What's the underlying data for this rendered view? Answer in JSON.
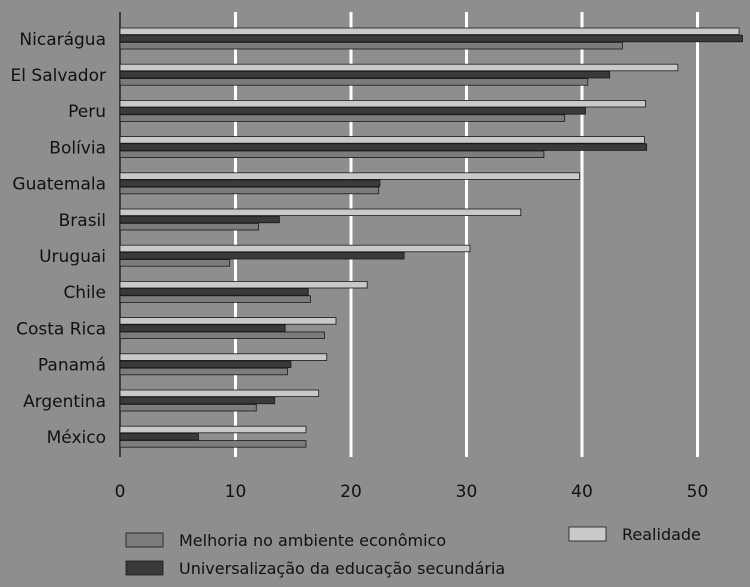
{
  "chart_data": {
    "type": "bar",
    "orientation": "horizontal",
    "categories": [
      "Nicarágua",
      "El Salvador",
      "Peru",
      "Bolívia",
      "Guatemala",
      "Brasil",
      "Uruguai",
      "Chile",
      "Costa Rica",
      "Panamá",
      "Argentina",
      "México"
    ],
    "series": [
      {
        "name": "Realidade",
        "color": "#c9c9c9",
        "values": [
          53.6,
          48.3,
          45.5,
          45.4,
          39.8,
          34.7,
          30.3,
          21.4,
          18.7,
          17.9,
          17.2,
          16.1
        ]
      },
      {
        "name": "Universalização da educação secundária",
        "color": "#3a3a3a",
        "values": [
          53.9,
          42.4,
          40.3,
          45.6,
          22.5,
          13.8,
          24.6,
          16.3,
          14.3,
          14.8,
          13.4,
          6.8
        ]
      },
      {
        "name": "Melhoria no ambiente econômico",
        "color": "#7c7c7c",
        "values": [
          43.5,
          40.5,
          38.5,
          36.7,
          22.4,
          12.0,
          9.5,
          16.5,
          17.7,
          14.5,
          11.8,
          16.1
        ]
      }
    ],
    "xlim": [
      0,
      55
    ],
    "xticks": [
      0,
      10,
      20,
      30,
      40,
      50
    ],
    "grid": true,
    "legend": {
      "position": "bottom"
    }
  }
}
